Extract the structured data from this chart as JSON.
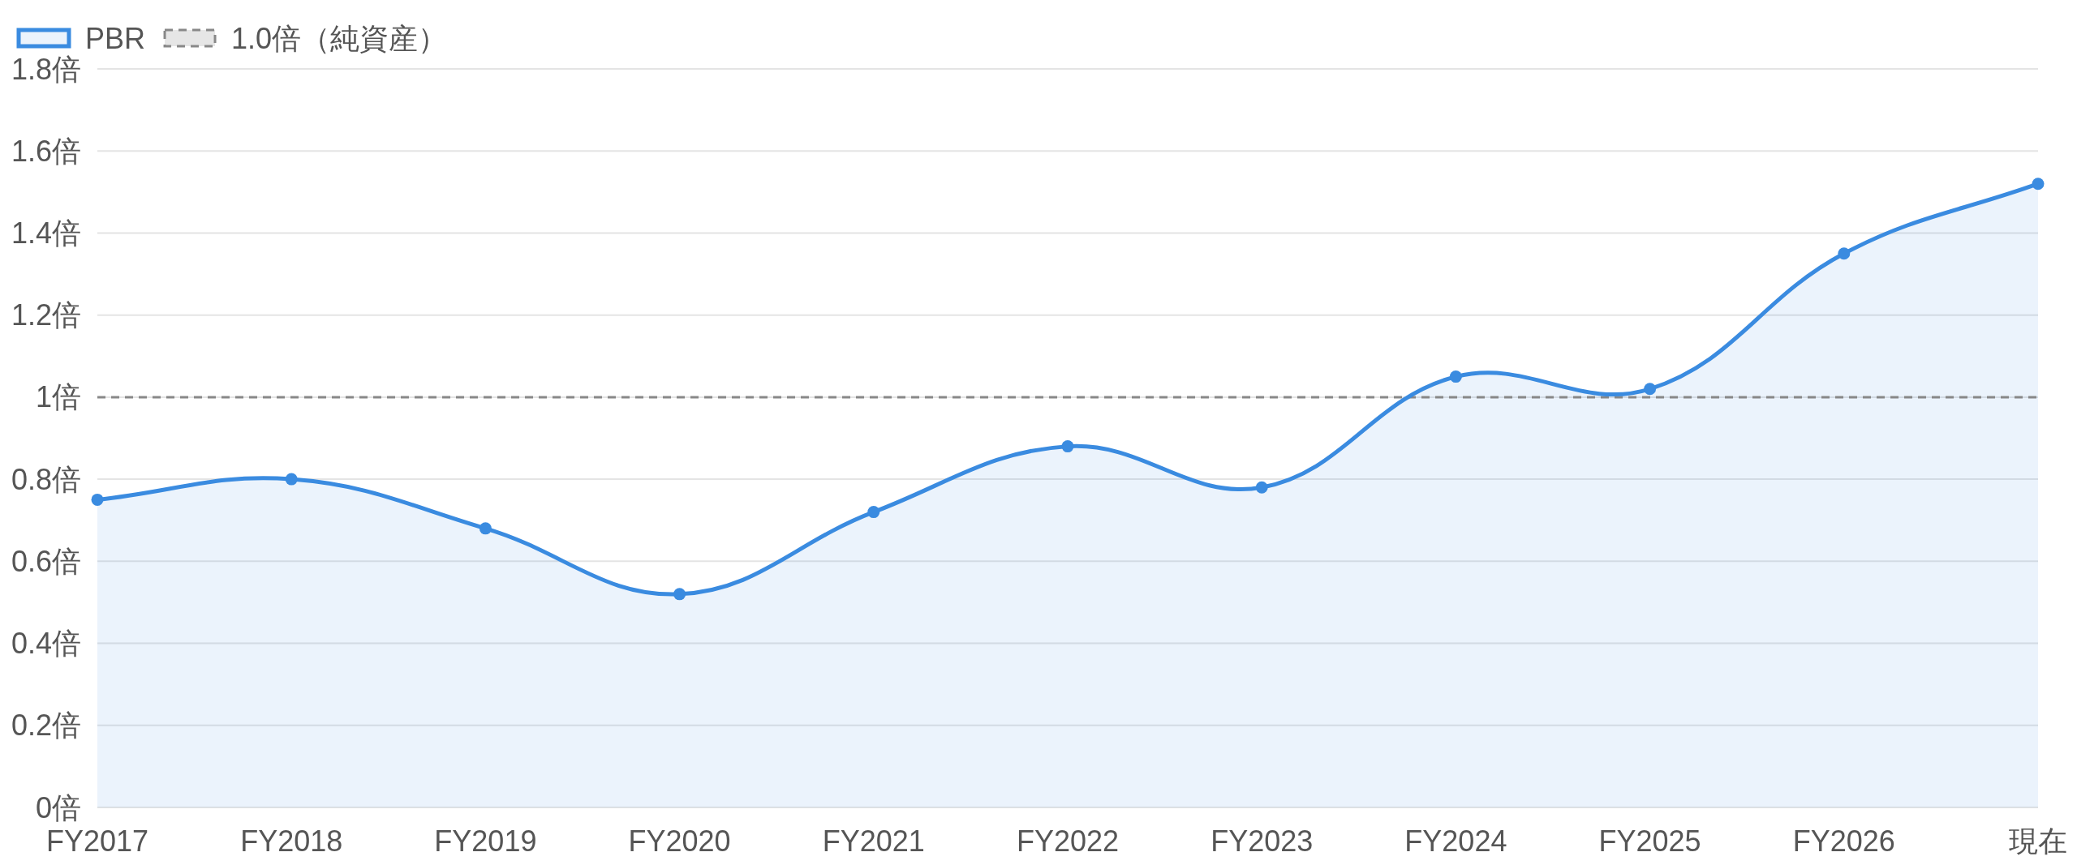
{
  "chart_data": {
    "type": "area",
    "categories": [
      "FY2017",
      "FY2018",
      "FY2019",
      "FY2020",
      "FY2021",
      "FY2022",
      "FY2023",
      "FY2024",
      "FY2025",
      "FY2026",
      "現在"
    ],
    "series": [
      {
        "name": "PBR",
        "color": "#3a8be0",
        "values": [
          0.75,
          0.8,
          0.68,
          0.52,
          0.72,
          0.88,
          0.78,
          1.05,
          1.02,
          1.35,
          1.52
        ]
      }
    ],
    "ylim": [
      0,
      1.8
    ],
    "yticks": [
      {
        "value": 0,
        "label": "0倍"
      },
      {
        "value": 0.2,
        "label": "0.2倍"
      },
      {
        "value": 0.4,
        "label": "0.4倍"
      },
      {
        "value": 0.6,
        "label": "0.6倍"
      },
      {
        "value": 0.8,
        "label": "0.8倍"
      },
      {
        "value": 1,
        "label": "1倍"
      },
      {
        "value": 1.2,
        "label": "1.2倍"
      },
      {
        "value": 1.4,
        "label": "1.4倍"
      },
      {
        "value": 1.6,
        "label": "1.6倍"
      },
      {
        "value": 1.8,
        "label": "1.8倍"
      }
    ],
    "grid": "y",
    "legend": "top left",
    "marker": "circle",
    "line_style": "solid",
    "ref_lines": [
      {
        "axis": "y",
        "value": 1,
        "label": "1.0倍（純資産）",
        "color": "#888888",
        "line_style": "dashed"
      }
    ]
  }
}
